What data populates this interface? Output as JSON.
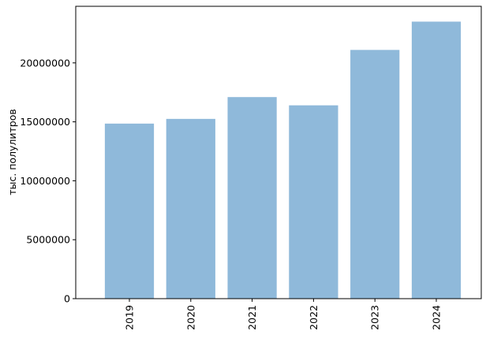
{
  "chart_data": {
    "type": "bar",
    "y_label": "тыс. полулитров",
    "categories": [
      "2019",
      "2020",
      "2021",
      "2022",
      "2023",
      "2024"
    ],
    "values": [
      14850000,
      15250000,
      17100000,
      16400000,
      21100000,
      23500000
    ],
    "color": "#8fb9da",
    "ylim": [
      0,
      24800000
    ],
    "yticks": [
      0,
      5000000,
      10000000,
      15000000,
      20000000
    ]
  }
}
